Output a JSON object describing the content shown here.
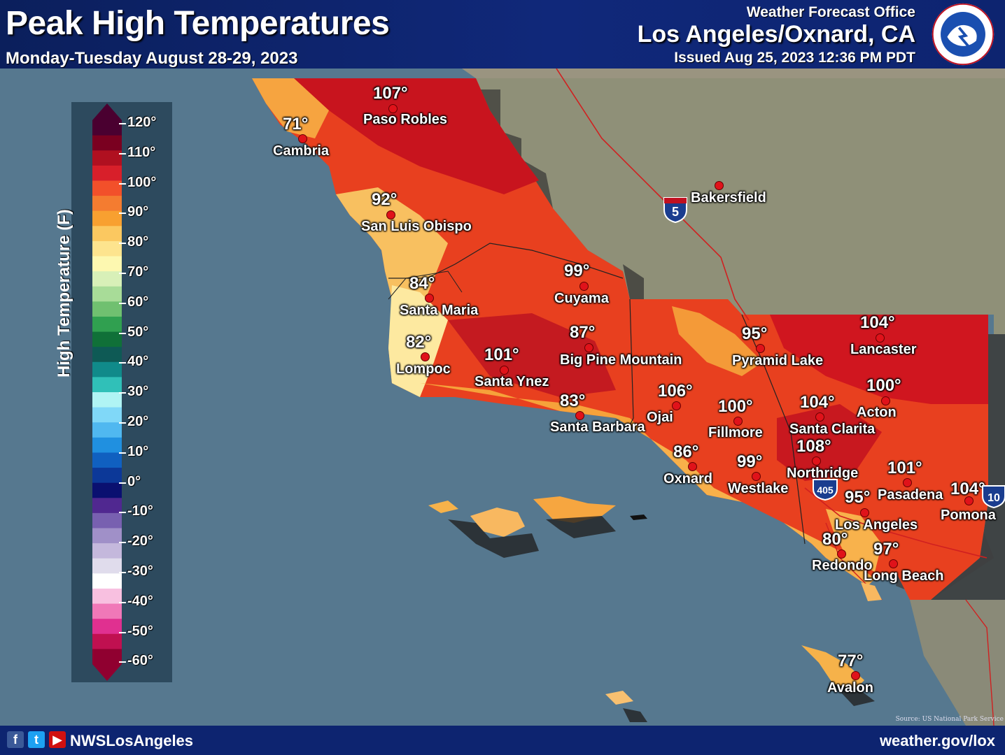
{
  "header": {
    "title": "Peak High Temperatures",
    "subtitle": "Monday-Tuesday August 28-29, 2023",
    "office_line1": "Weather Forecast Office",
    "office_line2": "Los Angeles/Oxnard, CA",
    "issued": "Issued Aug 25, 2023 12:36 PM PDT",
    "logo_text": "NATIONAL WEATHER SERVICE"
  },
  "legend": {
    "title": "High Temperature (F)",
    "ticks": [
      "120°",
      "110°",
      "100°",
      "90°",
      "80°",
      "70°",
      "60°",
      "50°",
      "40°",
      "30°",
      "20°",
      "10°",
      "0°",
      "-10°",
      "-20°",
      "-30°",
      "-40°",
      "-50°",
      "-60°"
    ],
    "colors": [
      "#4a0030",
      "#7a0020",
      "#b01020",
      "#d81f2a",
      "#f2502a",
      "#f47c30",
      "#f8a030",
      "#fbc860",
      "#fde48e",
      "#fdf8b0",
      "#d8f0b8",
      "#a8dc98",
      "#70c070",
      "#30a050",
      "#107038",
      "#0e5a55",
      "#108a8a",
      "#30c0b8",
      "#b0f4f4",
      "#80d8f8",
      "#50b8f0",
      "#2090e0",
      "#1060c0",
      "#0c3898",
      "#0a1070",
      "#502890",
      "#7860b0",
      "#a090c8",
      "#c4b8dc",
      "#e0dcec",
      "#ffffff",
      "#f8c0e0",
      "#f078b8",
      "#e03090",
      "#c01050",
      "#900030"
    ]
  },
  "locations": [
    {
      "name": "Paso Robles",
      "temp": "107°"
    },
    {
      "name": "Cambria",
      "temp": "71°"
    },
    {
      "name": "San Luis Obispo",
      "temp": "92°"
    },
    {
      "name": "Bakersfield",
      "temp": ""
    },
    {
      "name": "Cuyama",
      "temp": "99°"
    },
    {
      "name": "Santa Maria",
      "temp": "84°"
    },
    {
      "name": "Lompoc",
      "temp": "82°"
    },
    {
      "name": "Santa Ynez",
      "temp": "101°"
    },
    {
      "name": "Big Pine Mountain",
      "temp": "87°"
    },
    {
      "name": "Santa Barbara",
      "temp": "83°"
    },
    {
      "name": "Ojai",
      "temp": "106°"
    },
    {
      "name": "Fillmore",
      "temp": "100°"
    },
    {
      "name": "Pyramid Lake",
      "temp": "95°"
    },
    {
      "name": "Lancaster",
      "temp": "104°"
    },
    {
      "name": "Acton",
      "temp": "100°"
    },
    {
      "name": "Santa Clarita",
      "temp": "104°"
    },
    {
      "name": "Northridge",
      "temp": "108°"
    },
    {
      "name": "Oxnard",
      "temp": "86°"
    },
    {
      "name": "Westlake",
      "temp": "99°"
    },
    {
      "name": "Pasadena",
      "temp": "101°"
    },
    {
      "name": "Pomona",
      "temp": "104°"
    },
    {
      "name": "Los Angeles",
      "temp": "95°"
    },
    {
      "name": "Redondo",
      "temp": "80°"
    },
    {
      "name": "Long Beach",
      "temp": "97°"
    },
    {
      "name": "Avalon",
      "temp": "77°"
    }
  ],
  "highways": {
    "i5": "5",
    "i405": "405",
    "i10": "10"
  },
  "footer": {
    "handle": "NWSLosAngeles",
    "site": "weather.gov/lox",
    "source": "Source: US National Park Service",
    "social_icons": [
      "facebook-icon",
      "twitter-icon",
      "youtube-icon"
    ]
  }
}
